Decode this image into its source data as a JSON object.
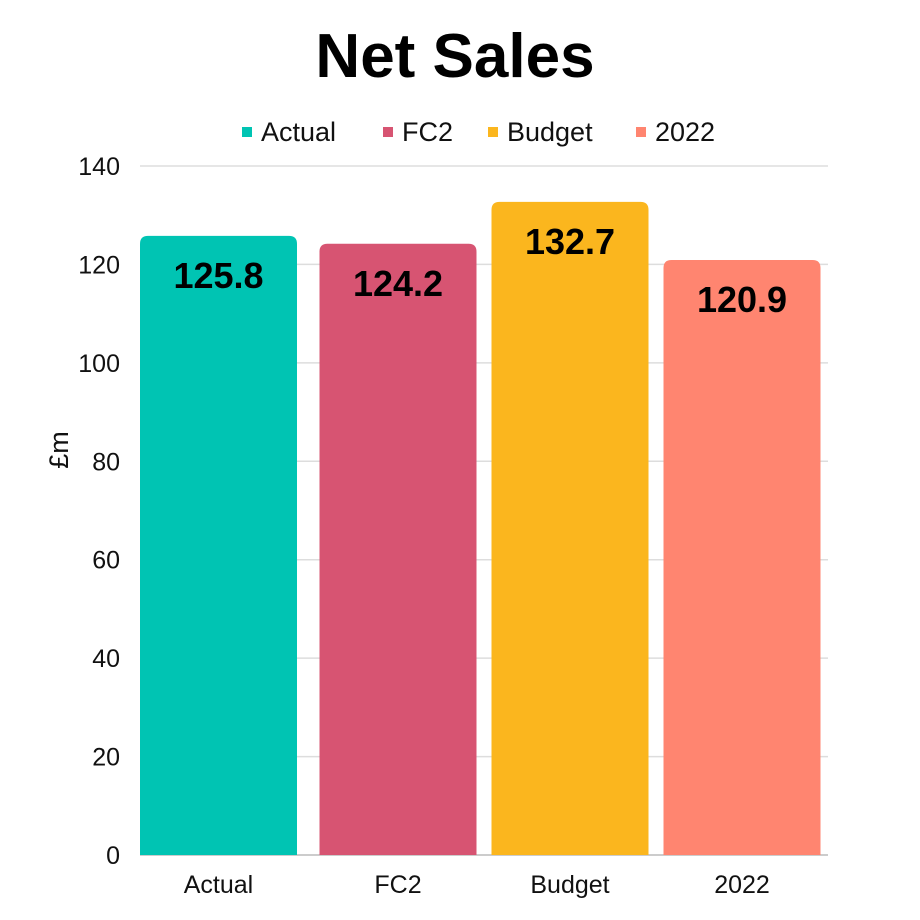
{
  "chart_data": {
    "type": "bar",
    "title": "Net Sales",
    "xlabel": "",
    "ylabel": "£m",
    "ylim": [
      0,
      140
    ],
    "yticks": [
      0,
      20,
      40,
      60,
      80,
      100,
      120,
      140
    ],
    "grid": true,
    "legend_placement": "top-center",
    "categories": [
      "Actual",
      "FC2",
      "Budget",
      "2022"
    ],
    "values": [
      125.8,
      124.2,
      132.7,
      120.9
    ],
    "data_labels": [
      "125.8",
      "124.2",
      "132.7",
      "120.9"
    ],
    "legend": [
      "Actual",
      "FC2",
      "Budget",
      "2022"
    ],
    "colors": [
      "#00C4B3",
      "#D75472",
      "#FBB61E",
      "#FF8570"
    ]
  }
}
